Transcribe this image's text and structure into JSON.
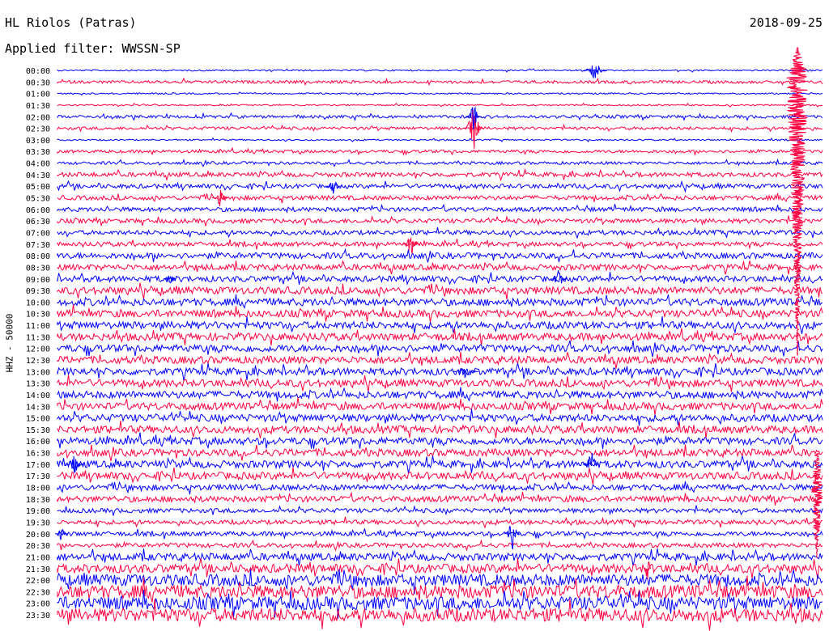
{
  "header": {
    "station": "HL Riolos (Patras)",
    "filter": "Applied filter: WWSSN-SP",
    "date": "2018-09-25"
  },
  "chart_data": {
    "type": "line",
    "ylabel": "HHZ - 50000",
    "colors": {
      "even": "#0000ff",
      "odd": "#ff0040"
    },
    "rows": [
      "00:00",
      "00:30",
      "01:00",
      "01:30",
      "02:00",
      "02:30",
      "03:00",
      "03:30",
      "04:00",
      "04:30",
      "05:00",
      "05:30",
      "06:00",
      "06:30",
      "07:00",
      "07:30",
      "08:00",
      "08:30",
      "09:00",
      "09:30",
      "10:00",
      "10:30",
      "11:00",
      "11:30",
      "12:00",
      "12:30",
      "13:00",
      "13:30",
      "14:00",
      "14:30",
      "15:00",
      "15:30",
      "16:00",
      "16:30",
      "17:00",
      "17:30",
      "18:00",
      "18:30",
      "19:00",
      "19:30",
      "20:00",
      "20:30",
      "21:00",
      "21:30",
      "22:00",
      "22:30",
      "23:00",
      "23:30"
    ],
    "noise_level": [
      1,
      2,
      1,
      1,
      2,
      2,
      1,
      2,
      2,
      3,
      3,
      3,
      3,
      3,
      3,
      3,
      4,
      4,
      4,
      5,
      5,
      5,
      5,
      5,
      5,
      5,
      5,
      5,
      5,
      5,
      5,
      5,
      5,
      5,
      5,
      5,
      4,
      4,
      3,
      3,
      3,
      3,
      5,
      6,
      8,
      9,
      9,
      9
    ]
  }
}
